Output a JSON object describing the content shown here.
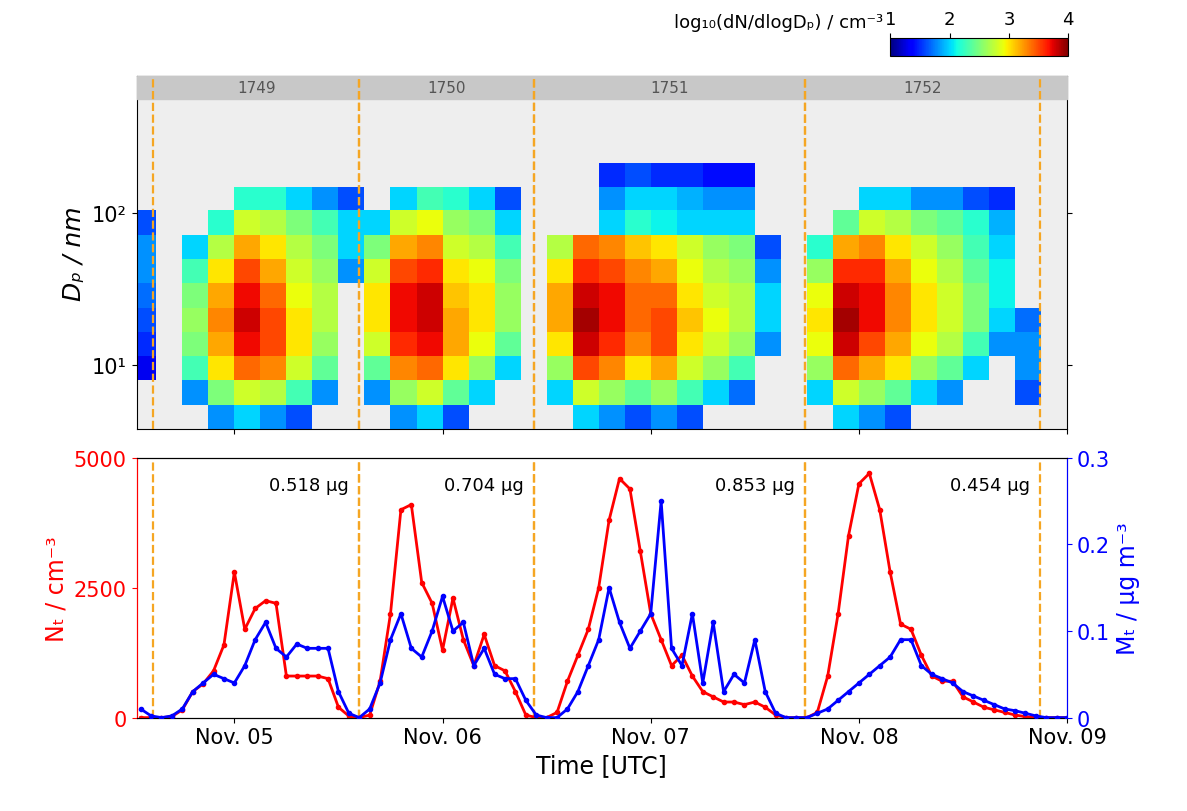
{
  "chart_data": [
    {
      "type": "heatmap",
      "ylabel": "Dₚ / nm",
      "color_label": "log₁₀(dN/dlogDₚ) / cm⁻³",
      "color_range": [
        1,
        4
      ],
      "color_ticks": [
        1,
        2,
        3,
        4
      ],
      "log": "y",
      "tick_labels": "y",
      "xlim": [
        4.53,
        9.0
      ],
      "xticks": [
        {
          "value": 5,
          "label": "Nov. 05"
        },
        {
          "value": 6,
          "label": "Nov. 06"
        },
        {
          "value": 7,
          "label": "Nov. 07"
        },
        {
          "value": 8,
          "label": "Nov. 08"
        },
        {
          "value": 9,
          "label": "Nov. 09"
        }
      ],
      "ylim": [
        3.8,
        800
      ],
      "yticks": [
        {
          "value": 10,
          "label": "10¹"
        },
        {
          "value": 100,
          "label": "10²"
        }
      ],
      "segments": [
        {
          "label": "1749",
          "start": 4.61,
          "end": 5.6
        },
        {
          "label": "1750",
          "start": 5.6,
          "end": 6.44
        },
        {
          "label": "1751",
          "start": 6.44,
          "end": 7.74
        },
        {
          "label": "1752",
          "start": 7.74,
          "end": 8.87
        }
      ],
      "x_edges": [
        4.5,
        4.625,
        4.75,
        4.875,
        5.0,
        5.125,
        5.25,
        5.375,
        5.5,
        5.625,
        5.75,
        5.875,
        6.0,
        6.125,
        6.25,
        6.375,
        6.5,
        6.625,
        6.75,
        6.875,
        7.0,
        7.125,
        7.25,
        7.375,
        7.5,
        7.625,
        7.75,
        7.875,
        8.0,
        8.125,
        8.25,
        8.375,
        8.5,
        8.625,
        8.75,
        8.875,
        9.0
      ],
      "y_edges": [
        3.8,
        5.5,
        8,
        11.5,
        16.5,
        24,
        35,
        50,
        72,
        105,
        150,
        215
      ],
      "cells": [
        [
          null,
          null,
          1.3,
          1.5,
          1.6,
          1.7,
          1.8,
          1.8,
          1.6,
          null,
          null
        ],
        [
          null,
          null,
          null,
          null,
          null,
          null,
          null,
          null,
          null,
          null,
          null
        ],
        [
          null,
          1.8,
          2.3,
          2.5,
          2.6,
          2.5,
          2.3,
          2.0,
          null,
          null,
          null
        ],
        [
          1.8,
          2.5,
          3.0,
          3.2,
          3.3,
          3.2,
          3.0,
          2.7,
          2.2,
          null,
          null
        ],
        [
          2.0,
          2.8,
          3.4,
          3.7,
          3.8,
          3.7,
          3.5,
          3.2,
          2.8,
          2.2,
          null
        ],
        [
          1.8,
          2.7,
          3.3,
          3.5,
          3.5,
          3.4,
          3.2,
          3.0,
          2.7,
          2.2,
          null
        ],
        [
          1.6,
          2.3,
          2.8,
          3.0,
          3.0,
          2.9,
          2.8,
          2.7,
          2.5,
          2.0,
          null
        ],
        [
          null,
          1.8,
          2.4,
          2.6,
          2.7,
          2.7,
          2.6,
          2.5,
          2.3,
          1.8,
          null
        ],
        [
          null,
          null,
          null,
          null,
          null,
          null,
          1.8,
          2.0,
          2.0,
          1.6,
          null
        ],
        [
          null,
          1.8,
          2.4,
          2.8,
          3.0,
          3.0,
          2.8,
          2.5,
          2.0,
          null,
          null
        ],
        [
          1.8,
          2.6,
          3.3,
          3.6,
          3.7,
          3.7,
          3.5,
          3.2,
          2.8,
          2.0,
          null
        ],
        [
          2.0,
          2.8,
          3.4,
          3.7,
          3.8,
          3.8,
          3.6,
          3.3,
          2.9,
          2.3,
          null
        ],
        [
          1.6,
          2.4,
          3.0,
          3.2,
          3.2,
          3.1,
          3.0,
          2.8,
          2.6,
          2.2,
          null
        ],
        [
          null,
          2.0,
          2.6,
          2.9,
          3.0,
          3.0,
          2.9,
          2.7,
          2.5,
          2.0,
          null
        ],
        [
          null,
          null,
          2.0,
          2.4,
          2.6,
          2.6,
          2.5,
          2.3,
          2.0,
          1.6,
          null
        ],
        [
          null,
          null,
          null,
          null,
          null,
          null,
          null,
          null,
          null,
          null,
          null
        ],
        [
          null,
          2.0,
          2.6,
          3.0,
          3.2,
          3.2,
          3.0,
          2.7,
          null,
          null,
          null
        ],
        [
          2.0,
          2.8,
          3.5,
          3.8,
          3.9,
          3.8,
          3.6,
          3.4,
          null,
          null,
          null
        ],
        [
          1.8,
          2.6,
          3.3,
          3.6,
          3.7,
          3.7,
          3.5,
          3.3,
          2.0,
          1.8,
          1.5
        ],
        [
          1.6,
          2.4,
          3.0,
          3.3,
          3.4,
          3.4,
          3.3,
          3.1,
          2.2,
          2.0,
          1.6
        ],
        [
          1.8,
          2.6,
          3.2,
          3.5,
          3.5,
          3.4,
          3.2,
          3.0,
          2.1,
          2.0,
          1.5
        ],
        [
          1.6,
          2.3,
          2.8,
          3.0,
          3.1,
          3.0,
          2.9,
          2.8,
          2.0,
          1.9,
          1.5
        ],
        [
          null,
          2.0,
          2.6,
          2.8,
          2.9,
          2.8,
          2.7,
          2.6,
          2.0,
          1.8,
          1.4
        ],
        [
          null,
          1.7,
          2.3,
          2.6,
          2.7,
          2.7,
          2.6,
          2.5,
          2.0,
          1.8,
          1.4
        ],
        [
          null,
          null,
          null,
          1.8,
          2.0,
          2.0,
          1.8,
          1.6,
          null,
          null,
          null
        ],
        [
          null,
          null,
          null,
          null,
          null,
          null,
          null,
          null,
          null,
          null,
          null
        ],
        [
          null,
          2.0,
          2.6,
          2.9,
          3.0,
          2.9,
          2.6,
          2.2,
          null,
          null,
          null
        ],
        [
          2.0,
          2.8,
          3.4,
          3.8,
          3.9,
          3.8,
          3.6,
          3.2,
          2.4,
          null,
          null
        ],
        [
          1.8,
          2.6,
          3.2,
          3.5,
          3.7,
          3.7,
          3.6,
          3.3,
          2.8,
          2.0,
          null
        ],
        [
          1.6,
          2.4,
          3.0,
          3.2,
          3.3,
          3.3,
          3.2,
          3.0,
          2.7,
          2.0,
          null
        ],
        [
          null,
          2.0,
          2.6,
          2.9,
          3.0,
          3.0,
          2.9,
          2.8,
          2.5,
          1.8,
          null
        ],
        [
          null,
          1.8,
          2.4,
          2.7,
          2.8,
          2.8,
          2.7,
          2.6,
          2.4,
          1.8,
          null
        ],
        [
          null,
          null,
          2.0,
          2.3,
          2.5,
          2.5,
          2.4,
          2.3,
          2.2,
          1.6,
          null
        ],
        [
          null,
          null,
          null,
          1.8,
          2.0,
          2.1,
          2.1,
          2.0,
          1.9,
          1.5,
          null
        ],
        [
          null,
          1.6,
          1.8,
          1.8,
          1.7,
          null,
          null,
          null,
          null,
          null,
          null
        ],
        [
          null,
          null,
          null,
          null,
          null,
          null,
          null,
          null,
          null,
          null,
          null
        ]
      ]
    },
    {
      "type": "line",
      "xlabel": "Time [UTC]",
      "ylabel": "Nₜ / cm⁻³",
      "y2label": "Mₜ / µg m⁻³",
      "xlim": [
        4.53,
        9.0
      ],
      "xticks": [
        {
          "value": 5,
          "label": "Nov. 05"
        },
        {
          "value": 6,
          "label": "Nov. 06"
        },
        {
          "value": 7,
          "label": "Nov. 07"
        },
        {
          "value": 8,
          "label": "Nov. 08"
        },
        {
          "value": 9,
          "label": "Nov. 09"
        }
      ],
      "ylim": [
        0,
        5000
      ],
      "yticks": [
        0,
        2500,
        5000
      ],
      "y2lim": [
        0,
        0.3
      ],
      "y2ticks": [
        0,
        0.1,
        0.2,
        0.3
      ],
      "segments": [
        {
          "text": "0.518 µg",
          "start": 4.61,
          "end": 5.6
        },
        {
          "text": "0.704 µg",
          "start": 5.6,
          "end": 6.44
        },
        {
          "text": "0.853 µg",
          "start": 6.44,
          "end": 7.74
        },
        {
          "text": "0.454 µg",
          "start": 7.74,
          "end": 8.87
        }
      ],
      "x": [
        4.55,
        4.6,
        4.65,
        4.7,
        4.75,
        4.8,
        4.85,
        4.9,
        4.95,
        5.0,
        5.05,
        5.1,
        5.15,
        5.2,
        5.25,
        5.3,
        5.35,
        5.4,
        5.45,
        5.5,
        5.55,
        5.6,
        5.65,
        5.7,
        5.75,
        5.8,
        5.85,
        5.9,
        5.95,
        6.0,
        6.05,
        6.1,
        6.15,
        6.2,
        6.25,
        6.3,
        6.35,
        6.4,
        6.45,
        6.5,
        6.55,
        6.6,
        6.65,
        6.7,
        6.75,
        6.8,
        6.85,
        6.9,
        6.95,
        7.0,
        7.05,
        7.1,
        7.15,
        7.2,
        7.25,
        7.3,
        7.35,
        7.4,
        7.45,
        7.5,
        7.55,
        7.6,
        7.65,
        7.7,
        7.75,
        7.8,
        7.85,
        7.9,
        7.95,
        8.0,
        8.05,
        8.1,
        8.15,
        8.2,
        8.25,
        8.3,
        8.35,
        8.4,
        8.45,
        8.5,
        8.55,
        8.6,
        8.65,
        8.7,
        8.75,
        8.8,
        8.85,
        8.9,
        8.95,
        9.0
      ],
      "series": [
        {
          "name": "Nₜ / cm⁻³",
          "color": "#ff0000",
          "marker": "o",
          "values": [
            0,
            0,
            0,
            20,
            150,
            500,
            650,
            900,
            1400,
            2800,
            1700,
            2100,
            2250,
            2200,
            800,
            800,
            800,
            800,
            750,
            200,
            30,
            0,
            50,
            700,
            2000,
            4000,
            4100,
            2600,
            2200,
            1300,
            2300,
            1500,
            1000,
            1600,
            1000,
            900,
            500,
            50,
            0,
            0,
            100,
            700,
            1200,
            1700,
            2500,
            3800,
            4600,
            4400,
            3200,
            2000,
            1500,
            1000,
            1200,
            800,
            500,
            400,
            300,
            300,
            250,
            300,
            200,
            50,
            0,
            0,
            0,
            100,
            800,
            2000,
            3500,
            4500,
            4700,
            4000,
            2800,
            1800,
            1700,
            1200,
            800,
            700,
            700,
            400,
            300,
            200,
            150,
            100,
            50,
            20,
            0,
            0,
            0,
            0
          ]
        },
        {
          "name": "Mₜ / µg m⁻³",
          "color": "#0000ff",
          "marker": "o",
          "axis": "y2",
          "values": [
            0.01,
            0.002,
            0,
            0.002,
            0.01,
            0.03,
            0.04,
            0.05,
            0.045,
            0.04,
            0.06,
            0.09,
            0.11,
            0.08,
            0.07,
            0.085,
            0.08,
            0.08,
            0.08,
            0.03,
            0.005,
            0,
            0.01,
            0.04,
            0.09,
            0.12,
            0.08,
            0.07,
            0.1,
            0.14,
            0.1,
            0.11,
            0.06,
            0.08,
            0.05,
            0.045,
            0.045,
            0.02,
            0.003,
            0,
            0,
            0.01,
            0.03,
            0.06,
            0.09,
            0.15,
            0.11,
            0.08,
            0.1,
            0.12,
            0.25,
            0.08,
            0.06,
            0.12,
            0.04,
            0.11,
            0.03,
            0.05,
            0.04,
            0.09,
            0.03,
            0.005,
            0,
            0,
            0,
            0.005,
            0.01,
            0.02,
            0.03,
            0.04,
            0.05,
            0.06,
            0.07,
            0.09,
            0.09,
            0.06,
            0.05,
            0.045,
            0.04,
            0.03,
            0.025,
            0.02,
            0.015,
            0.01,
            0.008,
            0.005,
            0.002,
            0,
            0,
            0
          ]
        }
      ]
    }
  ]
}
